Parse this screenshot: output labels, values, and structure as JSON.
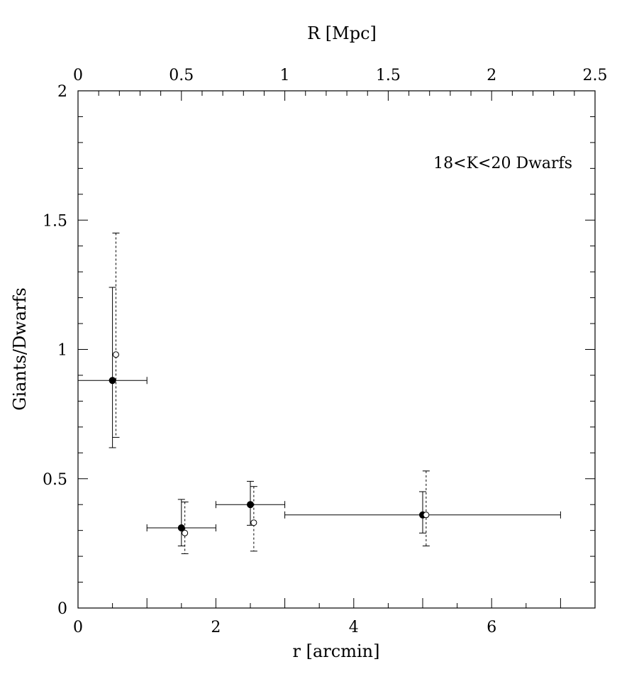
{
  "chart_data": {
    "type": "scatter",
    "title": "",
    "xlabel": "r [arcmin]",
    "ylabel": "Giants/Dwarfs",
    "x2label": "R [Mpc]",
    "xlim": [
      0,
      7.5
    ],
    "ylim": [
      0,
      2
    ],
    "x2lim": [
      0,
      2.5
    ],
    "xticks": [
      0,
      2,
      4,
      6
    ],
    "xtick_labels": [
      "0",
      "2",
      "4",
      "6"
    ],
    "yticks": [
      0,
      0.5,
      1,
      1.5,
      2
    ],
    "ytick_labels": [
      "0",
      "0.5",
      "1",
      "1.5",
      "2"
    ],
    "x2ticks": [
      0,
      0.5,
      1,
      1.5,
      2,
      2.5
    ],
    "x2tick_labels": [
      "0",
      "0.5",
      "1",
      "1.5",
      "2",
      "2.5"
    ],
    "grid": false,
    "annotation": "18<K<20 Dwarfs",
    "series": [
      {
        "marker": "filled-circle",
        "errorbar_style": "solid",
        "points": [
          {
            "x": 0.5,
            "y": 0.88,
            "xmin": 0,
            "xmax": 1,
            "ymin": 0.62,
            "ymax": 1.24
          },
          {
            "x": 1.5,
            "y": 0.31,
            "xmin": 1,
            "xmax": 2,
            "ymin": 0.24,
            "ymax": 0.42
          },
          {
            "x": 2.5,
            "y": 0.4,
            "xmin": 2,
            "xmax": 3,
            "ymin": 0.32,
            "ymax": 0.49
          },
          {
            "x": 5.0,
            "y": 0.36,
            "xmin": 3,
            "xmax": 7,
            "ymin": 0.29,
            "ymax": 0.45
          }
        ]
      },
      {
        "marker": "open-circle",
        "errorbar_style": "dashed",
        "points": [
          {
            "x": 0.55,
            "y": 0.98,
            "ymin": 0.66,
            "ymax": 1.45
          },
          {
            "x": 1.55,
            "y": 0.29,
            "ymin": 0.21,
            "ymax": 0.41
          },
          {
            "x": 2.55,
            "y": 0.33,
            "ymin": 0.22,
            "ymax": 0.47
          },
          {
            "x": 5.05,
            "y": 0.36,
            "ymin": 0.24,
            "ymax": 0.53
          }
        ]
      }
    ]
  }
}
